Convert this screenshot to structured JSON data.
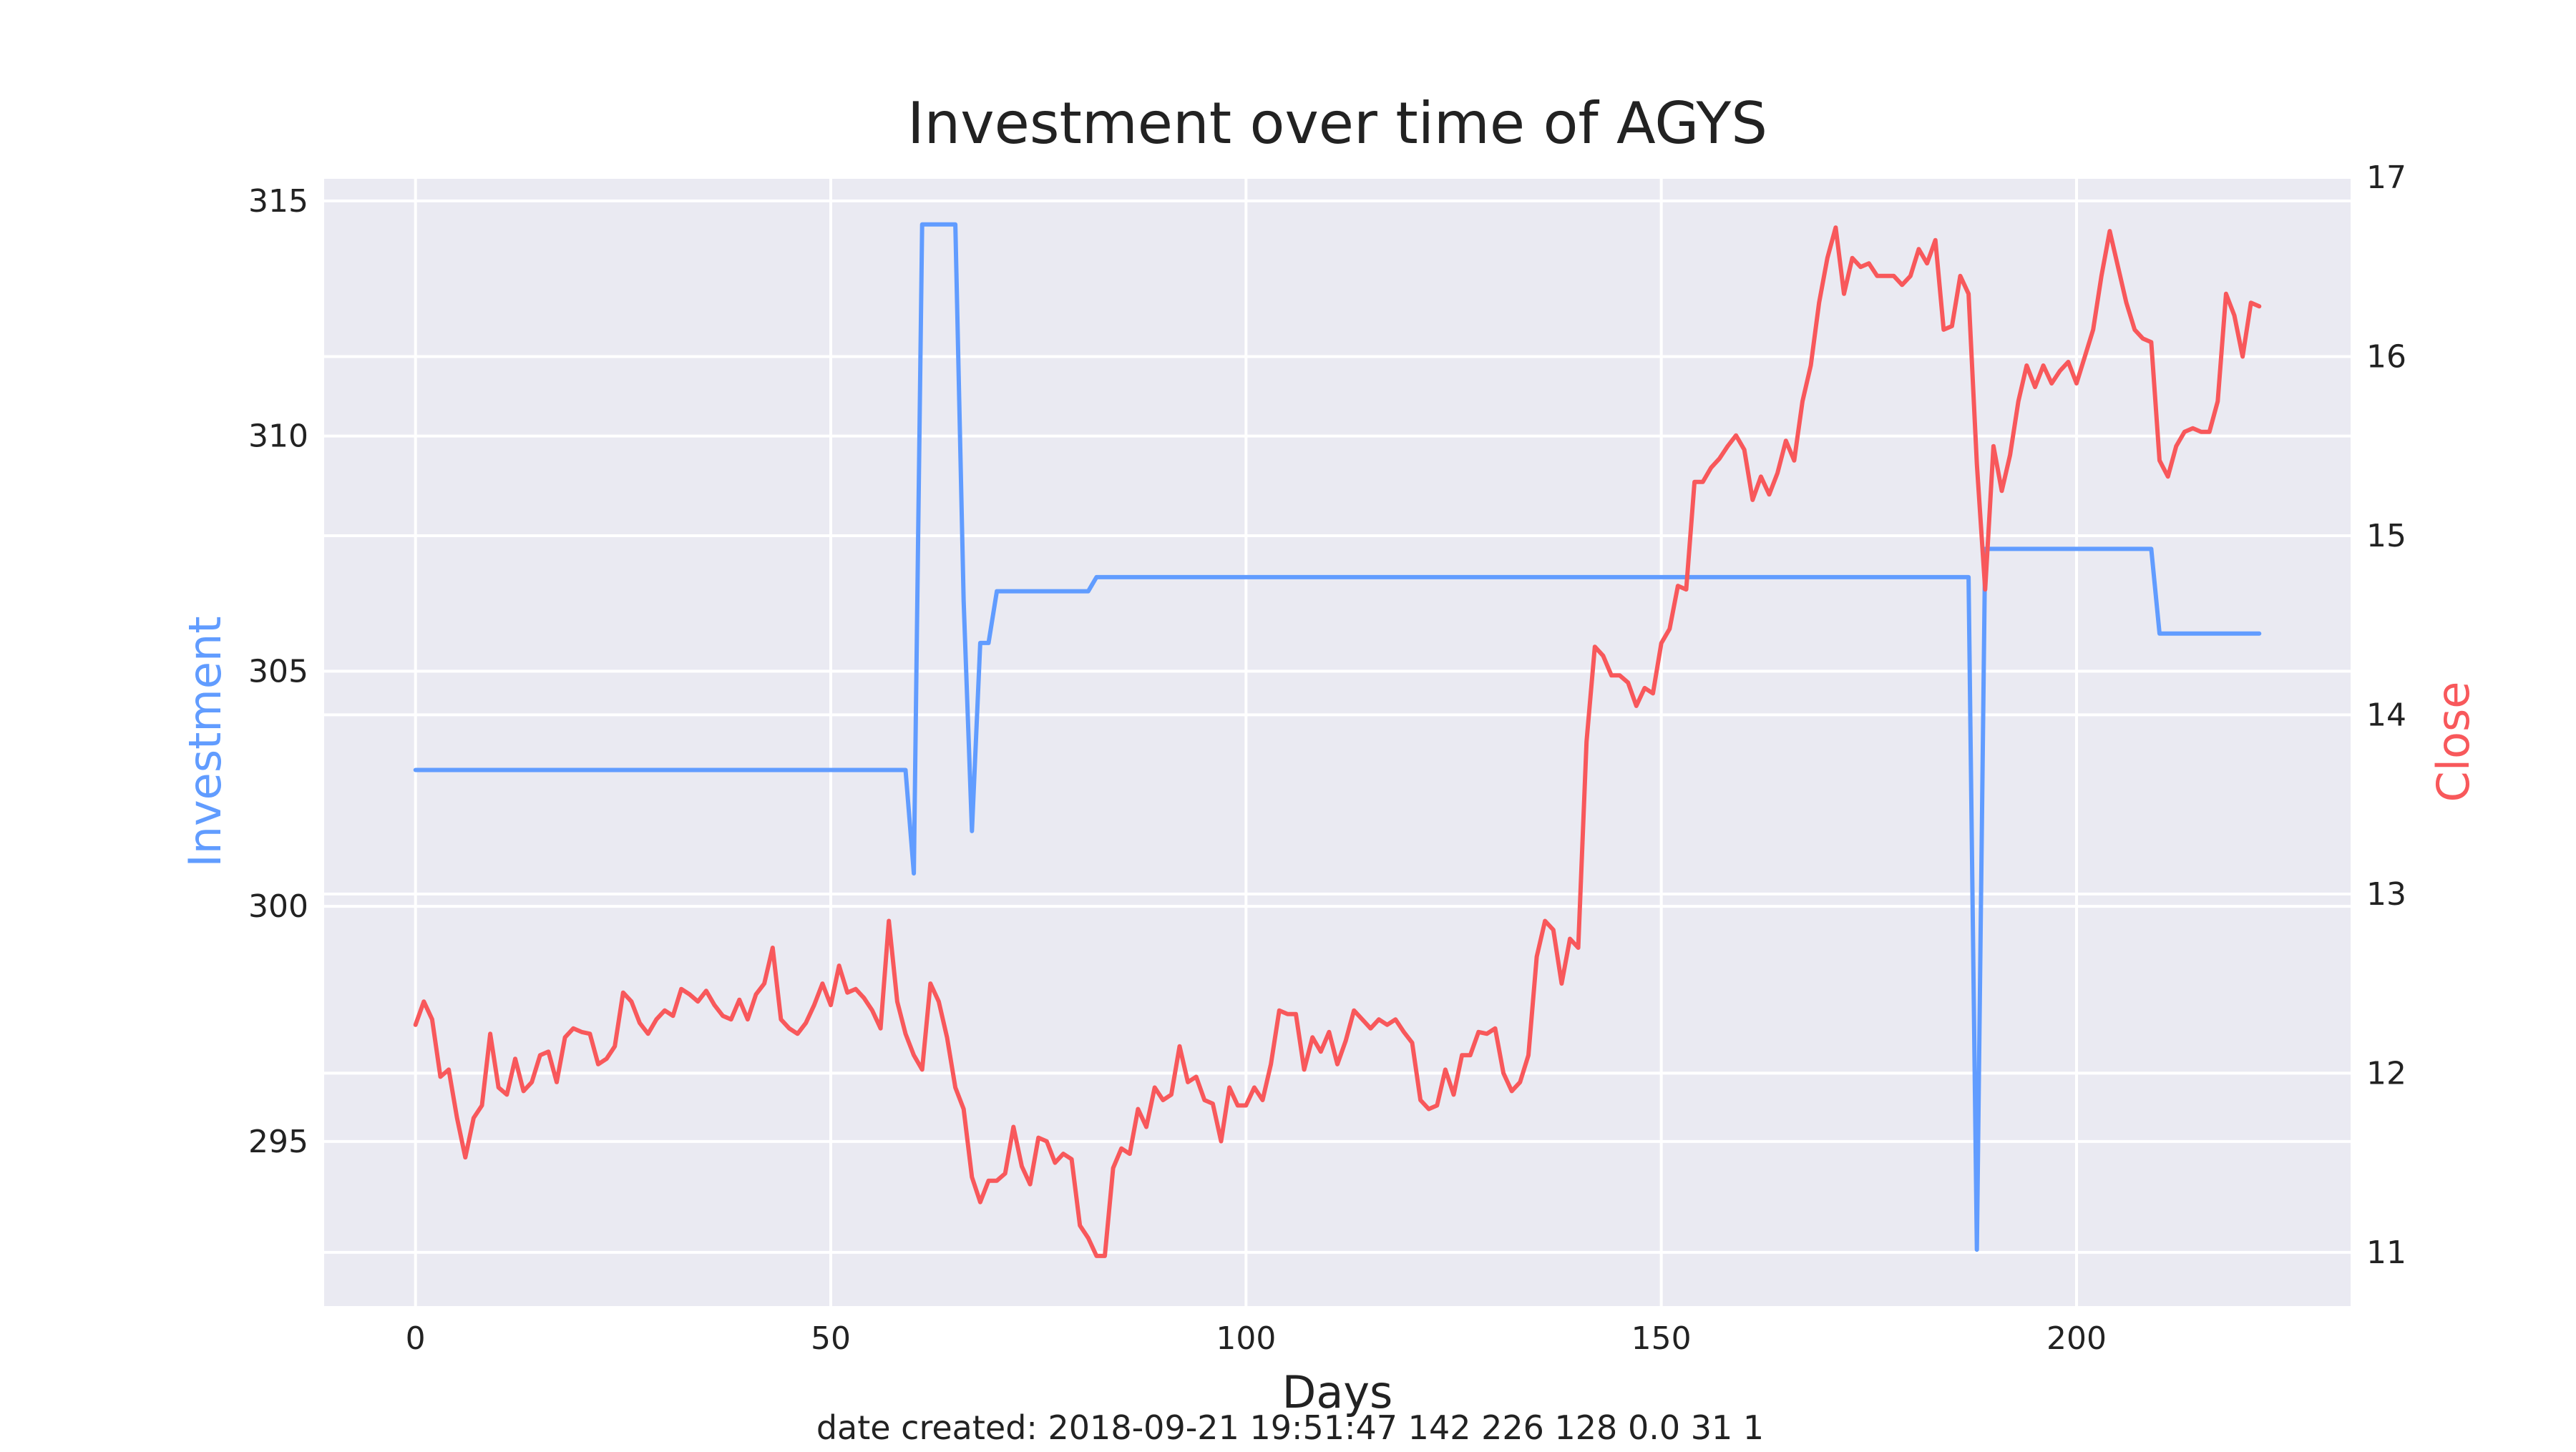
{
  "chart_data": {
    "type": "line",
    "title": "Investment over time of AGYS",
    "xlabel": "Days",
    "ylabel_left": "Investment",
    "ylabel_right": "Close",
    "footer": "date created: 2018-09-21 19:51:47 142 226 128 0.0 31 1",
    "xlim": [
      -11,
      233
    ],
    "ylim_left": [
      291.5,
      315.5
    ],
    "ylim_right": [
      10.7,
      17.0
    ],
    "x_ticks": [
      0,
      50,
      100,
      150,
      200
    ],
    "y_left_ticks": [
      295,
      300,
      305,
      310,
      315
    ],
    "y_right_ticks": [
      11,
      12,
      13,
      14,
      15,
      16,
      17
    ],
    "grid": true,
    "colors": {
      "investment": "#619cff",
      "close": "#f8585b",
      "plot_bg": "#eaeaf2",
      "grid": "#ffffff",
      "text": "#222222"
    },
    "series": [
      {
        "axis": "left",
        "points": [
          [
            0,
            302.9
          ],
          [
            59,
            302.9
          ],
          [
            60,
            300.7
          ],
          [
            61,
            314.5
          ],
          [
            65,
            314.5
          ],
          [
            66,
            306.5
          ],
          [
            67,
            301.6
          ],
          [
            68,
            305.6
          ],
          [
            69,
            305.6
          ],
          [
            70,
            306.7
          ],
          [
            81,
            306.7
          ],
          [
            82,
            307.0
          ],
          [
            187,
            307.0
          ],
          [
            188,
            292.7
          ],
          [
            189,
            307.6
          ],
          [
            209,
            307.6
          ],
          [
            210,
            305.8
          ],
          [
            222,
            305.8
          ]
        ]
      },
      {
        "axis": "right",
        "points": [
          [
            0,
            12.27
          ],
          [
            1,
            12.4
          ],
          [
            2,
            12.3
          ],
          [
            3,
            11.98
          ],
          [
            4,
            12.02
          ],
          [
            5,
            11.75
          ],
          [
            6,
            11.53
          ],
          [
            7,
            11.75
          ],
          [
            8,
            11.82
          ],
          [
            9,
            12.22
          ],
          [
            10,
            11.92
          ],
          [
            11,
            11.88
          ],
          [
            12,
            12.08
          ],
          [
            13,
            11.9
          ],
          [
            14,
            11.95
          ],
          [
            15,
            12.1
          ],
          [
            16,
            12.12
          ],
          [
            17,
            11.95
          ],
          [
            18,
            12.2
          ],
          [
            19,
            12.25
          ],
          [
            20,
            12.23
          ],
          [
            21,
            12.22
          ],
          [
            22,
            12.05
          ],
          [
            23,
            12.08
          ],
          [
            24,
            12.15
          ],
          [
            25,
            12.45
          ],
          [
            26,
            12.4
          ],
          [
            27,
            12.28
          ],
          [
            28,
            12.22
          ],
          [
            29,
            12.3
          ],
          [
            30,
            12.35
          ],
          [
            31,
            12.32
          ],
          [
            32,
            12.47
          ],
          [
            33,
            12.44
          ],
          [
            34,
            12.4
          ],
          [
            35,
            12.46
          ],
          [
            36,
            12.38
          ],
          [
            37,
            12.32
          ],
          [
            38,
            12.3
          ],
          [
            39,
            12.41
          ],
          [
            40,
            12.3
          ],
          [
            41,
            12.44
          ],
          [
            42,
            12.5
          ],
          [
            43,
            12.7
          ],
          [
            44,
            12.3
          ],
          [
            45,
            12.25
          ],
          [
            46,
            12.22
          ],
          [
            47,
            12.28
          ],
          [
            48,
            12.38
          ],
          [
            49,
            12.5
          ],
          [
            50,
            12.38
          ],
          [
            51,
            12.6
          ],
          [
            52,
            12.45
          ],
          [
            53,
            12.47
          ],
          [
            54,
            12.42
          ],
          [
            55,
            12.35
          ],
          [
            56,
            12.25
          ],
          [
            57,
            12.85
          ],
          [
            58,
            12.4
          ],
          [
            59,
            12.22
          ],
          [
            60,
            12.1
          ],
          [
            61,
            12.02
          ],
          [
            62,
            12.5
          ],
          [
            63,
            12.4
          ],
          [
            64,
            12.2
          ],
          [
            65,
            11.92
          ],
          [
            66,
            11.8
          ],
          [
            67,
            11.42
          ],
          [
            68,
            11.28
          ],
          [
            69,
            11.4
          ],
          [
            70,
            11.4
          ],
          [
            71,
            11.44
          ],
          [
            72,
            11.7
          ],
          [
            73,
            11.48
          ],
          [
            74,
            11.38
          ],
          [
            75,
            11.64
          ],
          [
            76,
            11.62
          ],
          [
            77,
            11.5
          ],
          [
            78,
            11.55
          ],
          [
            79,
            11.52
          ],
          [
            80,
            11.15
          ],
          [
            81,
            11.08
          ],
          [
            82,
            10.98
          ],
          [
            83,
            10.98
          ],
          [
            84,
            11.47
          ],
          [
            85,
            11.58
          ],
          [
            86,
            11.55
          ],
          [
            87,
            11.8
          ],
          [
            88,
            11.7
          ],
          [
            89,
            11.92
          ],
          [
            90,
            11.85
          ],
          [
            91,
            11.88
          ],
          [
            92,
            12.15
          ],
          [
            93,
            11.95
          ],
          [
            94,
            11.98
          ],
          [
            95,
            11.85
          ],
          [
            96,
            11.83
          ],
          [
            97,
            11.62
          ],
          [
            98,
            11.92
          ],
          [
            99,
            11.82
          ],
          [
            100,
            11.82
          ],
          [
            101,
            11.92
          ],
          [
            102,
            11.85
          ],
          [
            103,
            12.05
          ],
          [
            104,
            12.35
          ],
          [
            105,
            12.33
          ],
          [
            106,
            12.33
          ],
          [
            107,
            12.02
          ],
          [
            108,
            12.2
          ],
          [
            109,
            12.12
          ],
          [
            110,
            12.23
          ],
          [
            111,
            12.05
          ],
          [
            112,
            12.18
          ],
          [
            113,
            12.35
          ],
          [
            114,
            12.3
          ],
          [
            115,
            12.25
          ],
          [
            116,
            12.3
          ],
          [
            117,
            12.27
          ],
          [
            118,
            12.3
          ],
          [
            119,
            12.23
          ],
          [
            120,
            12.17
          ],
          [
            121,
            11.85
          ],
          [
            122,
            11.8
          ],
          [
            123,
            11.82
          ],
          [
            124,
            12.02
          ],
          [
            125,
            11.88
          ],
          [
            126,
            12.1
          ],
          [
            127,
            12.1
          ],
          [
            128,
            12.23
          ],
          [
            129,
            12.22
          ],
          [
            130,
            12.25
          ],
          [
            131,
            12.0
          ],
          [
            132,
            11.9
          ],
          [
            133,
            11.95
          ],
          [
            134,
            12.1
          ],
          [
            135,
            12.65
          ],
          [
            136,
            12.85
          ],
          [
            137,
            12.8
          ],
          [
            138,
            12.5
          ],
          [
            139,
            12.75
          ],
          [
            140,
            12.7
          ],
          [
            141,
            13.85
          ],
          [
            142,
            14.38
          ],
          [
            143,
            14.33
          ],
          [
            144,
            14.22
          ],
          [
            145,
            14.22
          ],
          [
            146,
            14.18
          ],
          [
            147,
            14.05
          ],
          [
            148,
            14.15
          ],
          [
            149,
            14.12
          ],
          [
            150,
            14.4
          ],
          [
            151,
            14.48
          ],
          [
            152,
            14.72
          ],
          [
            153,
            14.7
          ],
          [
            154,
            15.3
          ],
          [
            155,
            15.3
          ],
          [
            156,
            15.38
          ],
          [
            157,
            15.43
          ],
          [
            158,
            15.5
          ],
          [
            159,
            15.56
          ],
          [
            160,
            15.48
          ],
          [
            161,
            15.2
          ],
          [
            162,
            15.33
          ],
          [
            163,
            15.23
          ],
          [
            164,
            15.35
          ],
          [
            165,
            15.53
          ],
          [
            166,
            15.42
          ],
          [
            167,
            15.75
          ],
          [
            168,
            15.95
          ],
          [
            169,
            16.3
          ],
          [
            170,
            16.55
          ],
          [
            171,
            16.72
          ],
          [
            172,
            16.35
          ],
          [
            173,
            16.55
          ],
          [
            174,
            16.5
          ],
          [
            175,
            16.52
          ],
          [
            176,
            16.45
          ],
          [
            177,
            16.45
          ],
          [
            178,
            16.45
          ],
          [
            179,
            16.4
          ],
          [
            180,
            16.45
          ],
          [
            181,
            16.6
          ],
          [
            182,
            16.52
          ],
          [
            183,
            16.65
          ],
          [
            184,
            16.15
          ],
          [
            185,
            16.17
          ],
          [
            186,
            16.45
          ],
          [
            187,
            16.35
          ],
          [
            188,
            15.4
          ],
          [
            189,
            14.7
          ],
          [
            190,
            15.5
          ],
          [
            191,
            15.25
          ],
          [
            192,
            15.45
          ],
          [
            193,
            15.75
          ],
          [
            194,
            15.95
          ],
          [
            195,
            15.83
          ],
          [
            196,
            15.95
          ],
          [
            197,
            15.85
          ],
          [
            198,
            15.92
          ],
          [
            199,
            15.97
          ],
          [
            200,
            15.85
          ],
          [
            201,
            16.0
          ],
          [
            202,
            16.15
          ],
          [
            203,
            16.45
          ],
          [
            204,
            16.7
          ],
          [
            205,
            16.5
          ],
          [
            206,
            16.3
          ],
          [
            207,
            16.15
          ],
          [
            208,
            16.1
          ],
          [
            209,
            16.08
          ],
          [
            210,
            15.42
          ],
          [
            211,
            15.33
          ],
          [
            212,
            15.5
          ],
          [
            213,
            15.58
          ],
          [
            214,
            15.6
          ],
          [
            215,
            15.58
          ],
          [
            216,
            15.58
          ],
          [
            217,
            15.75
          ],
          [
            218,
            16.35
          ],
          [
            219,
            16.23
          ],
          [
            220,
            16.0
          ],
          [
            221,
            16.3
          ],
          [
            222,
            16.28
          ]
        ]
      }
    ]
  }
}
